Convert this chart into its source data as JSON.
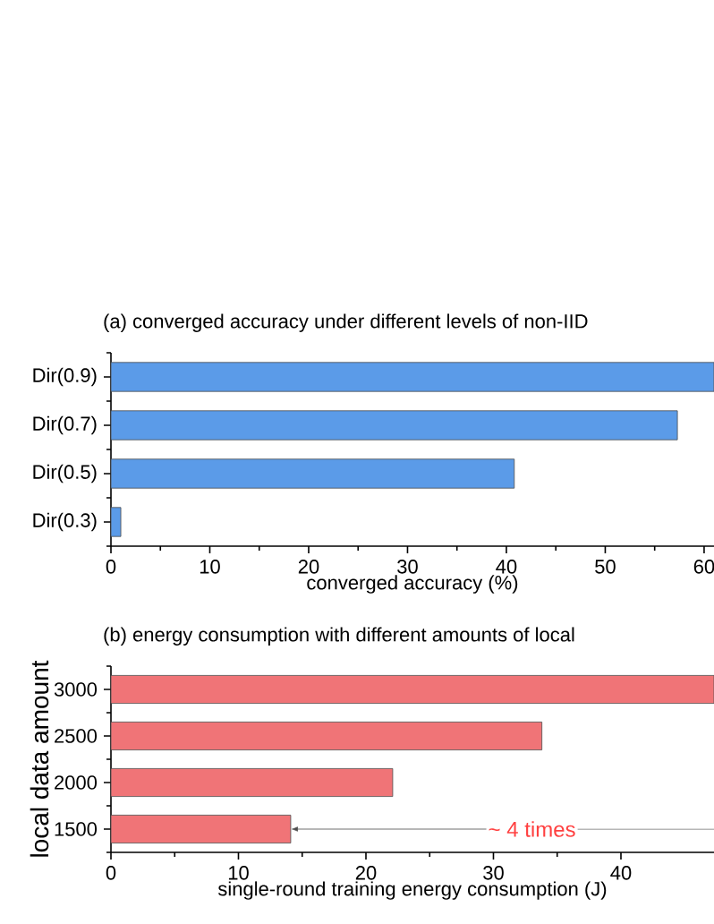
{
  "chart_data": [
    {
      "type": "bar",
      "orientation": "horizontal",
      "title": "(a) converged accuracy under different levels of non-IID",
      "xlabel": "converged accuracy (%)",
      "categories": [
        "Dir(0.9)",
        "Dir(0.7)",
        "Dir(0.5)",
        "Dir(0.3)"
      ],
      "values": [
        61,
        57.3,
        40.8,
        1.0
      ],
      "color": "#5b9be8",
      "xlim": [
        0,
        61
      ],
      "xticks": [
        0,
        10,
        20,
        30,
        40,
        50,
        60
      ]
    },
    {
      "type": "bar",
      "orientation": "horizontal",
      "title": "(b) energy consumption with different amounts of local",
      "xlabel": "single-round training energy consumption (J)",
      "ylabel": "local data amount",
      "categories": [
        "3000",
        "2500",
        "2000",
        "1500"
      ],
      "values": [
        47.3,
        33.8,
        22.1,
        14.1
      ],
      "color": "#f07477",
      "xlim": [
        0,
        47.3
      ],
      "xticks": [
        0,
        10,
        20,
        30,
        40
      ],
      "annotations": [
        {
          "text": "~ 4 times",
          "x": 14.1,
          "y": "1500"
        }
      ]
    }
  ]
}
